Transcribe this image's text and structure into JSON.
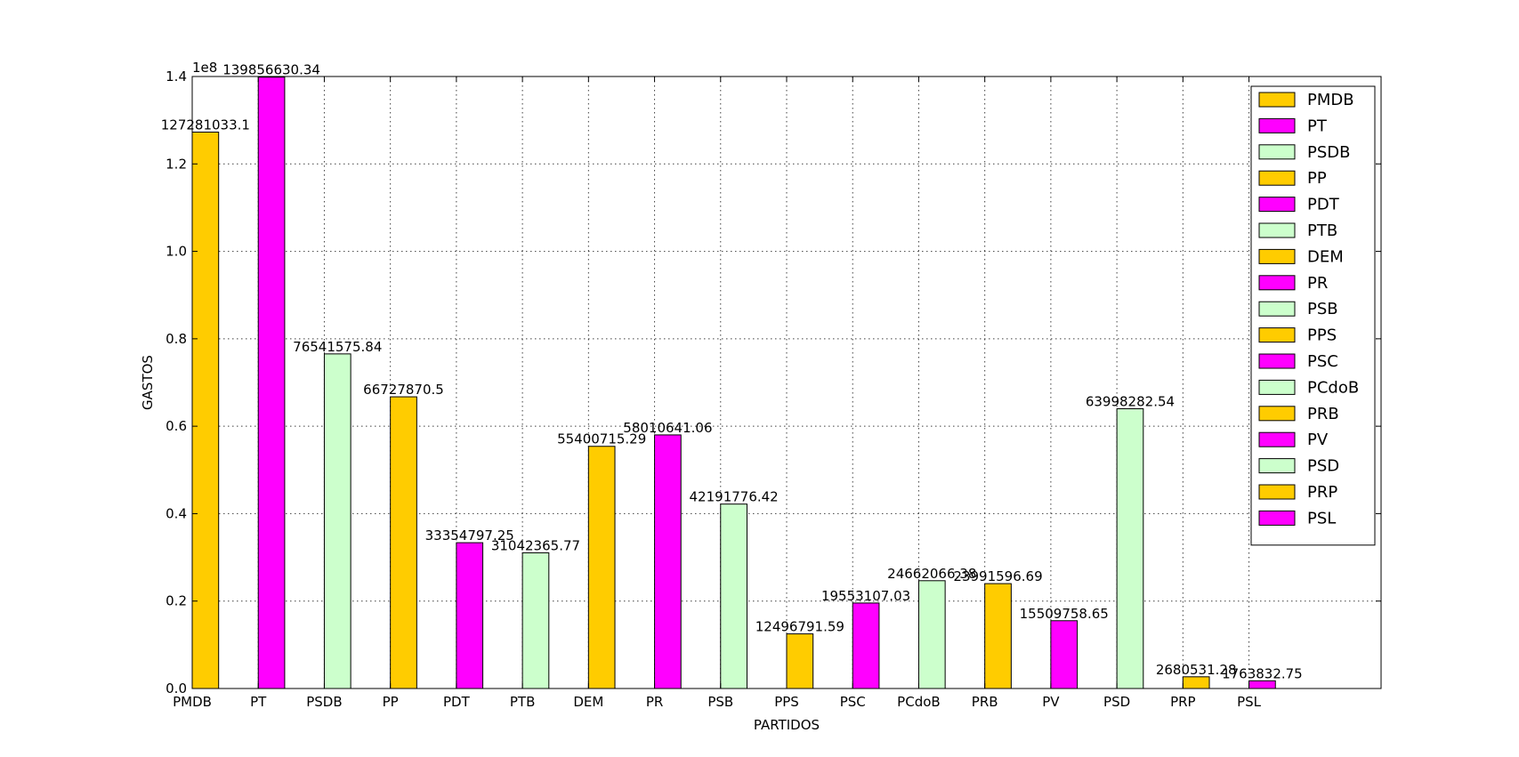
{
  "chart_data": {
    "type": "bar",
    "title": "",
    "xlabel": "PARTIDOS",
    "ylabel": "GASTOS",
    "y_offset_text": "1e8",
    "ylim": [
      0,
      140000000
    ],
    "y_ticks": [
      0,
      20000000,
      40000000,
      60000000,
      80000000,
      100000000,
      120000000,
      140000000
    ],
    "y_tick_labels": [
      "0.0",
      "0.2",
      "0.4",
      "0.6",
      "0.8",
      "1.0",
      "1.2",
      "1.4"
    ],
    "xlim": [
      0,
      18
    ],
    "grid": true,
    "legend_position": "top-right",
    "categories": [
      "PMDB",
      "PT",
      "PSDB",
      "PP",
      "PDT",
      "PTB",
      "DEM",
      "PR",
      "PSB",
      "PPS",
      "PSC",
      "PCdoB",
      "PRB",
      "PV",
      "PSD",
      "PRP",
      "PSL"
    ],
    "values": [
      127281033.1,
      139856630.34,
      76541575.84,
      66727870.5,
      33354797.25,
      31042365.77,
      55400715.29,
      58010641.06,
      42191776.42,
      12496791.59,
      19553107.03,
      24662066.38,
      23991596.69,
      15509758.65,
      63998282.54,
      2680531.28,
      1763832.75
    ],
    "value_labels": [
      "127281033.1",
      "139856630.34",
      "76541575.84",
      "66727870.5",
      "33354797.25",
      "31042365.77",
      "55400715.29",
      "58010641.06",
      "42191776.42",
      "12496791.59",
      "19553107.03",
      "24662066.38",
      "23991596.69",
      "15509758.65",
      "63998282.54",
      "2680531.28",
      "1763832.75"
    ],
    "colors": [
      "#ffcc00",
      "#ff00ff",
      "#ccffcc",
      "#ffcc00",
      "#ff00ff",
      "#ccffcc",
      "#ffcc00",
      "#ff00ff",
      "#ccffcc",
      "#ffcc00",
      "#ff00ff",
      "#ccffcc",
      "#ffcc00",
      "#ff00ff",
      "#ccffcc",
      "#ffcc00",
      "#ff00ff"
    ],
    "bar_width": 0.4,
    "legend": [
      "PMDB",
      "PT",
      "PSDB",
      "PP",
      "PDT",
      "PTB",
      "DEM",
      "PR",
      "PSB",
      "PPS",
      "PSC",
      "PCdoB",
      "PRB",
      "PV",
      "PSD",
      "PRP",
      "PSL"
    ]
  }
}
